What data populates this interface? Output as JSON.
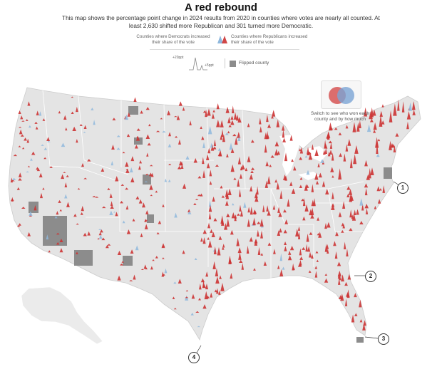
{
  "title": "A red rebound",
  "subtitle": "This map shows the percentage point change in 2024 results from 2020 in counties where votes are nearly all counted. At least 2,630 shifted more Republican and 301 turned more Democratic.",
  "legend": {
    "dem_label": "Counties where Democrats increased their share of the vote",
    "rep_label": "Counties where Republicans increased their share of the vote",
    "scale_large": "+20ppt",
    "scale_small": "+5ppt",
    "flipped_label": "Flipped county"
  },
  "switch_control": {
    "text": "Switch to see who won each county and by how much"
  },
  "callouts": [
    "1",
    "2",
    "3",
    "4"
  ],
  "colors": {
    "republican": "#cc3333",
    "democrat": "#8fb8dd",
    "land": "#e4e4e4",
    "flipped": "#8c8c8c",
    "borders": "#ffffff"
  },
  "icons": {
    "switch": "two-overlapping-circles-icon",
    "legend_peak": "spike-triangle-icon"
  }
}
